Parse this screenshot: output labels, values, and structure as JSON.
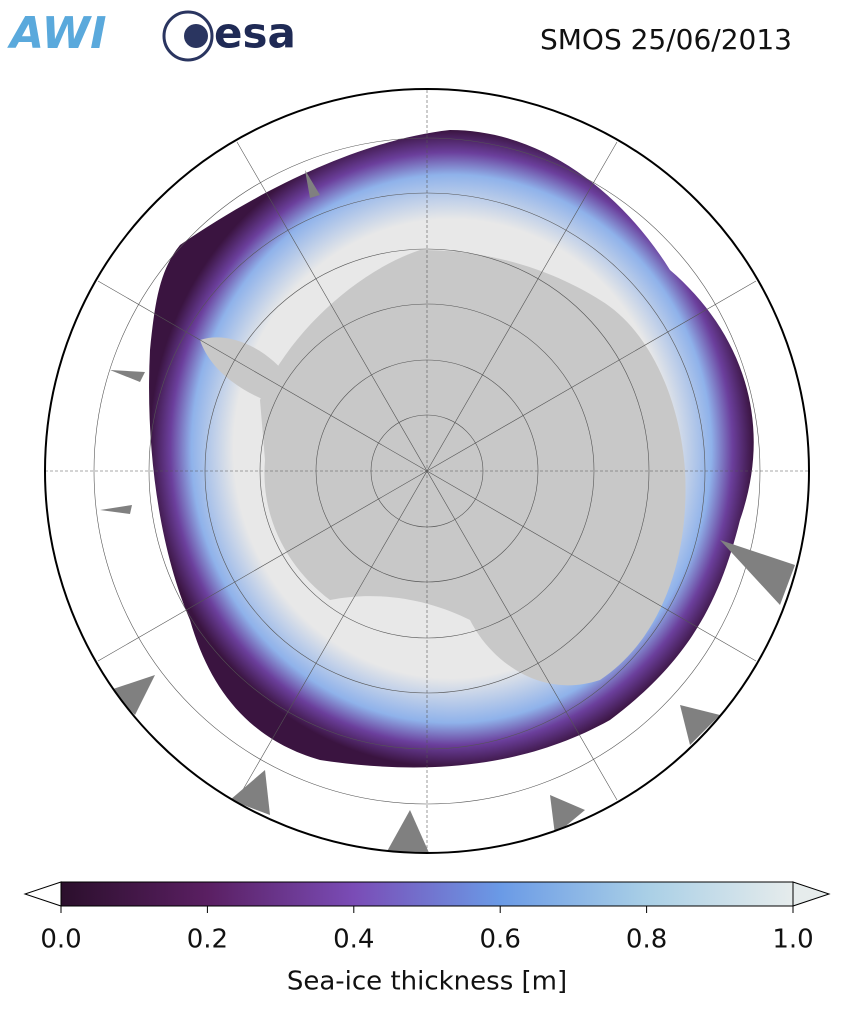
{
  "header": {
    "logos": [
      "AWI",
      "esa"
    ],
    "title": "SMOS 25/06/2013"
  },
  "colorbar": {
    "label": "Sea-ice thickness [m]",
    "lim": [
      0,
      1
    ],
    "ticks": [
      {
        "value": 0,
        "label": "0.0"
      },
      0.2,
      0.4,
      0.6,
      0.8,
      {
        "value": 1,
        "label": "1.0"
      }
    ]
  }
}
